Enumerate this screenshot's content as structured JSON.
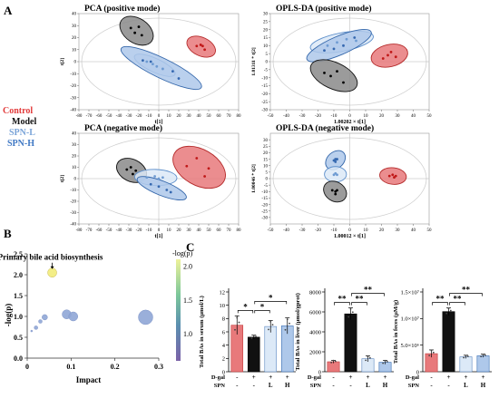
{
  "panel_letters": {
    "A": "A",
    "B": "B",
    "C": "C"
  },
  "legend": {
    "entries": [
      {
        "label": "Control",
        "color": "#e23a3a"
      },
      {
        "label": "Model",
        "color": "#111111"
      },
      {
        "label": "SPN-L",
        "color": "#7aa4d8"
      },
      {
        "label": "SPN-H",
        "color": "#3f78c4"
      }
    ]
  },
  "colors": {
    "control_fill": "#e8797b",
    "control_edge": "#b52b2b",
    "model_fill": "#8a8a8a",
    "model_edge": "#111111",
    "spnl_fill": "#dce9f7",
    "spnl_edge": "#5d8fcb",
    "spnh_fill": "#aec8ea",
    "spnh_edge": "#3366aa",
    "bubble_main": "#8fa6d6",
    "bubble_highlight": "#f2ec7a"
  },
  "chart_data": [
    {
      "type": "scatter",
      "id": "pca-positive",
      "title": "PCA (positive mode)",
      "xlabel": "t[1]",
      "ylabel": "t[2]",
      "xlim": [
        -80,
        80
      ],
      "ylim": [
        -40,
        40
      ],
      "x_ticks": [
        -80,
        -70,
        -60,
        -50,
        -40,
        -30,
        -20,
        -10,
        0,
        10,
        20,
        30,
        40,
        50,
        60,
        70,
        80
      ],
      "y_ticks": [
        -40,
        -30,
        -20,
        -10,
        0,
        10,
        20,
        30,
        40
      ],
      "groups": [
        {
          "name": "Model",
          "points": [
            [
              -28,
              28
            ],
            [
              -20,
              29
            ],
            [
              -17,
              22
            ],
            [
              -24,
              24
            ]
          ]
        },
        {
          "name": "Control",
          "points": [
            [
              38,
              13
            ],
            [
              42,
              14
            ],
            [
              44,
              13
            ],
            [
              46,
              10
            ]
          ]
        },
        {
          "name": "SPN-L",
          "points": [
            [
              -12,
              0
            ],
            [
              -2,
              -4
            ],
            [
              4,
              -6
            ],
            [
              -6,
              -2
            ]
          ]
        },
        {
          "name": "SPN-H",
          "points": [
            [
              -16,
              1
            ],
            [
              -8,
              0
            ],
            [
              14,
              -8
            ],
            [
              20,
              -14
            ]
          ]
        }
      ]
    },
    {
      "type": "scatter",
      "id": "oplsda-positive",
      "title": "OPLS-DA (positive mode)",
      "xlabel": "1.00202 × t[1]",
      "ylabel": "1.01311 * t[2]",
      "xlim": [
        -50,
        50
      ],
      "ylim": [
        -30,
        30
      ],
      "x_ticks": [
        -50,
        -40,
        -30,
        -20,
        -10,
        0,
        10,
        20,
        30,
        40,
        50
      ],
      "y_ticks": [
        -30,
        -25,
        -20,
        -15,
        -10,
        -5,
        0,
        5,
        10,
        15,
        20,
        25,
        30
      ],
      "groups": [
        {
          "name": "SPN-L",
          "points": [
            [
              -14,
              10
            ],
            [
              -8,
              12
            ],
            [
              -2,
              14
            ],
            [
              4,
              13
            ]
          ]
        },
        {
          "name": "SPN-H",
          "points": [
            [
              -16,
              7
            ],
            [
              -10,
              8
            ],
            [
              -4,
              10
            ],
            [
              3,
              15
            ]
          ]
        },
        {
          "name": "Control",
          "points": [
            [
              21,
              2
            ],
            [
              24,
              4
            ],
            [
              26,
              6
            ],
            [
              29,
              3
            ]
          ]
        },
        {
          "name": "Model",
          "points": [
            [
              -16,
              -7
            ],
            [
              -12,
              -9
            ],
            [
              -8,
              -6
            ],
            [
              -4,
              -13
            ]
          ]
        }
      ]
    },
    {
      "type": "scatter",
      "id": "pca-negative",
      "title": "PCA (negative mode)",
      "xlabel": "t[1]",
      "ylabel": "t[2]",
      "xlim": [
        -80,
        80
      ],
      "ylim": [
        -40,
        40
      ],
      "x_ticks": [
        -80,
        -70,
        -60,
        -50,
        -40,
        -30,
        -20,
        -10,
        0,
        10,
        20,
        30,
        40,
        50,
        60,
        70,
        80
      ],
      "y_ticks": [
        -40,
        -30,
        -20,
        -10,
        0,
        10,
        20,
        30,
        40
      ],
      "groups": [
        {
          "name": "Model",
          "points": [
            [
              -32,
              8
            ],
            [
              -28,
              10
            ],
            [
              -26,
              4
            ],
            [
              -23,
              7
            ]
          ]
        },
        {
          "name": "Control",
          "points": [
            [
              28,
              11
            ],
            [
              38,
              18
            ],
            [
              46,
              2
            ],
            [
              50,
              9
            ]
          ]
        },
        {
          "name": "SPN-L",
          "points": [
            [
              -12,
              1
            ],
            [
              -4,
              2
            ],
            [
              0,
              0
            ],
            [
              4,
              1
            ]
          ]
        },
        {
          "name": "SPN-H",
          "points": [
            [
              -8,
              -5
            ],
            [
              0,
              -7
            ],
            [
              8,
              -10
            ],
            [
              12,
              -12
            ]
          ]
        }
      ]
    },
    {
      "type": "scatter",
      "id": "oplsda-negative",
      "title": "OPLS-DA (negative mode)",
      "xlabel": "1.00012 × t[1]",
      "ylabel": "1.00046 * t[2]",
      "xlim": [
        -50,
        50
      ],
      "ylim": [
        -35,
        35
      ],
      "x_ticks": [
        -50,
        -40,
        -30,
        -20,
        -10,
        0,
        10,
        20,
        30,
        40,
        50
      ],
      "y_ticks": [
        -30,
        -25,
        -20,
        -15,
        -10,
        -5,
        0,
        5,
        10,
        15,
        20,
        25,
        30
      ],
      "groups": [
        {
          "name": "SPN-H",
          "points": [
            [
              -10,
              14
            ],
            [
              -9,
              15
            ],
            [
              -8,
              15
            ],
            [
              -9,
              13
            ]
          ]
        },
        {
          "name": "SPN-L",
          "points": [
            [
              -10,
              3
            ],
            [
              -9,
              4
            ],
            [
              -8,
              3
            ]
          ]
        },
        {
          "name": "Control",
          "points": [
            [
              25,
              2
            ],
            [
              27,
              3
            ],
            [
              28,
              1
            ],
            [
              29,
              2
            ]
          ]
        },
        {
          "name": "Model",
          "points": [
            [
              -11,
              -9
            ],
            [
              -9,
              -10
            ],
            [
              -8,
              -9
            ],
            [
              -9,
              -12
            ]
          ]
        }
      ]
    },
    {
      "type": "scatter",
      "id": "pathway-bubble",
      "xlabel": "Impact",
      "ylabel": "-log(p)",
      "xlim": [
        0,
        0.3
      ],
      "ylim": [
        0,
        2.5
      ],
      "x_ticks": [
        0,
        0.1,
        0.2,
        0.3
      ],
      "y_ticks": [
        0.0,
        0.5,
        1.0,
        1.5,
        2.0,
        2.5
      ],
      "annotation": "Primary bile acid biosynthesis",
      "colorbar": {
        "title": "-log(p)",
        "ticks": [
          1.0,
          1.5,
          2.0
        ]
      },
      "points": [
        {
          "x": 0.057,
          "y": 2.05,
          "size": 5,
          "highlight": true
        },
        {
          "x": 0.27,
          "y": 0.98,
          "size": 8
        },
        {
          "x": 0.09,
          "y": 1.05,
          "size": 5
        },
        {
          "x": 0.105,
          "y": 1.0,
          "size": 5
        },
        {
          "x": 0.04,
          "y": 0.98,
          "size": 3
        },
        {
          "x": 0.03,
          "y": 0.88,
          "size": 2
        },
        {
          "x": 0.02,
          "y": 0.73,
          "size": 2
        },
        {
          "x": 0.01,
          "y": 0.65,
          "size": 1
        }
      ]
    },
    {
      "type": "bar",
      "id": "serum",
      "ylabel": "Total BAs in serum (μmol/L)",
      "ylim": [
        0,
        12
      ],
      "y_ticks": [
        0,
        2,
        4,
        6,
        8,
        10,
        12
      ],
      "categories": [
        "Control",
        "Model",
        "SPN-L",
        "SPN-H"
      ],
      "values": [
        7.0,
        5.2,
        6.8,
        6.9
      ],
      "errors": [
        1.4,
        0.3,
        0.9,
        1.2
      ],
      "row_dgal": [
        "-",
        "+",
        "+",
        "+"
      ],
      "row_spn": [
        "-",
        "-",
        "L",
        "H"
      ],
      "row_labels": [
        "D-gal",
        "SPN"
      ],
      "significance": [
        {
          "from": 0,
          "to": 1,
          "label": "*",
          "level": 1
        },
        {
          "from": 1,
          "to": 2,
          "label": "*",
          "level": 1
        },
        {
          "from": 1,
          "to": 3,
          "label": "*",
          "level": 2
        }
      ]
    },
    {
      "type": "bar",
      "id": "liver",
      "ylabel": "Total BAs in liver (μmol/gprot)",
      "ylim": [
        0,
        8000
      ],
      "y_ticks": [
        0,
        2000,
        4000,
        6000,
        8000
      ],
      "categories": [
        "Control",
        "Model",
        "SPN-L",
        "SPN-H"
      ],
      "values": [
        1000,
        5800,
        1300,
        950
      ],
      "errors": [
        150,
        600,
        300,
        200
      ],
      "row_dgal": [
        "-",
        "+",
        "+",
        "+"
      ],
      "row_spn": [
        "-",
        "-",
        "L",
        "H"
      ],
      "row_labels": [
        "D-gal",
        "SPN"
      ],
      "significance": [
        {
          "from": 0,
          "to": 1,
          "label": "**",
          "level": 1
        },
        {
          "from": 1,
          "to": 2,
          "label": "**",
          "level": 1
        },
        {
          "from": 1,
          "to": 3,
          "label": "**",
          "level": 2
        }
      ]
    },
    {
      "type": "bar",
      "id": "feces",
      "ylabel": "Total BAs in feces (μM/g)",
      "ylim": [
        0,
        15000000
      ],
      "y_ticks": [
        0,
        5000000,
        10000000,
        15000000
      ],
      "y_tick_labels": [
        "0",
        "5.0×10⁶",
        "1.0×10⁷",
        "1.5×10⁷"
      ],
      "categories": [
        "Control",
        "Model",
        "SPN-L",
        "SPN-H"
      ],
      "values": [
        3400000,
        11300000,
        2800000,
        3000000
      ],
      "errors": [
        700000,
        700000,
        300000,
        300000
      ],
      "row_dgal": [
        "-",
        "+",
        "+",
        "+"
      ],
      "row_spn": [
        "-",
        "-",
        "L",
        "H"
      ],
      "row_labels": [
        "D-gal",
        "SPN"
      ],
      "significance": [
        {
          "from": 0,
          "to": 1,
          "label": "**",
          "level": 1
        },
        {
          "from": 1,
          "to": 2,
          "label": "**",
          "level": 1
        },
        {
          "from": 1,
          "to": 3,
          "label": "**",
          "level": 2
        }
      ]
    }
  ]
}
